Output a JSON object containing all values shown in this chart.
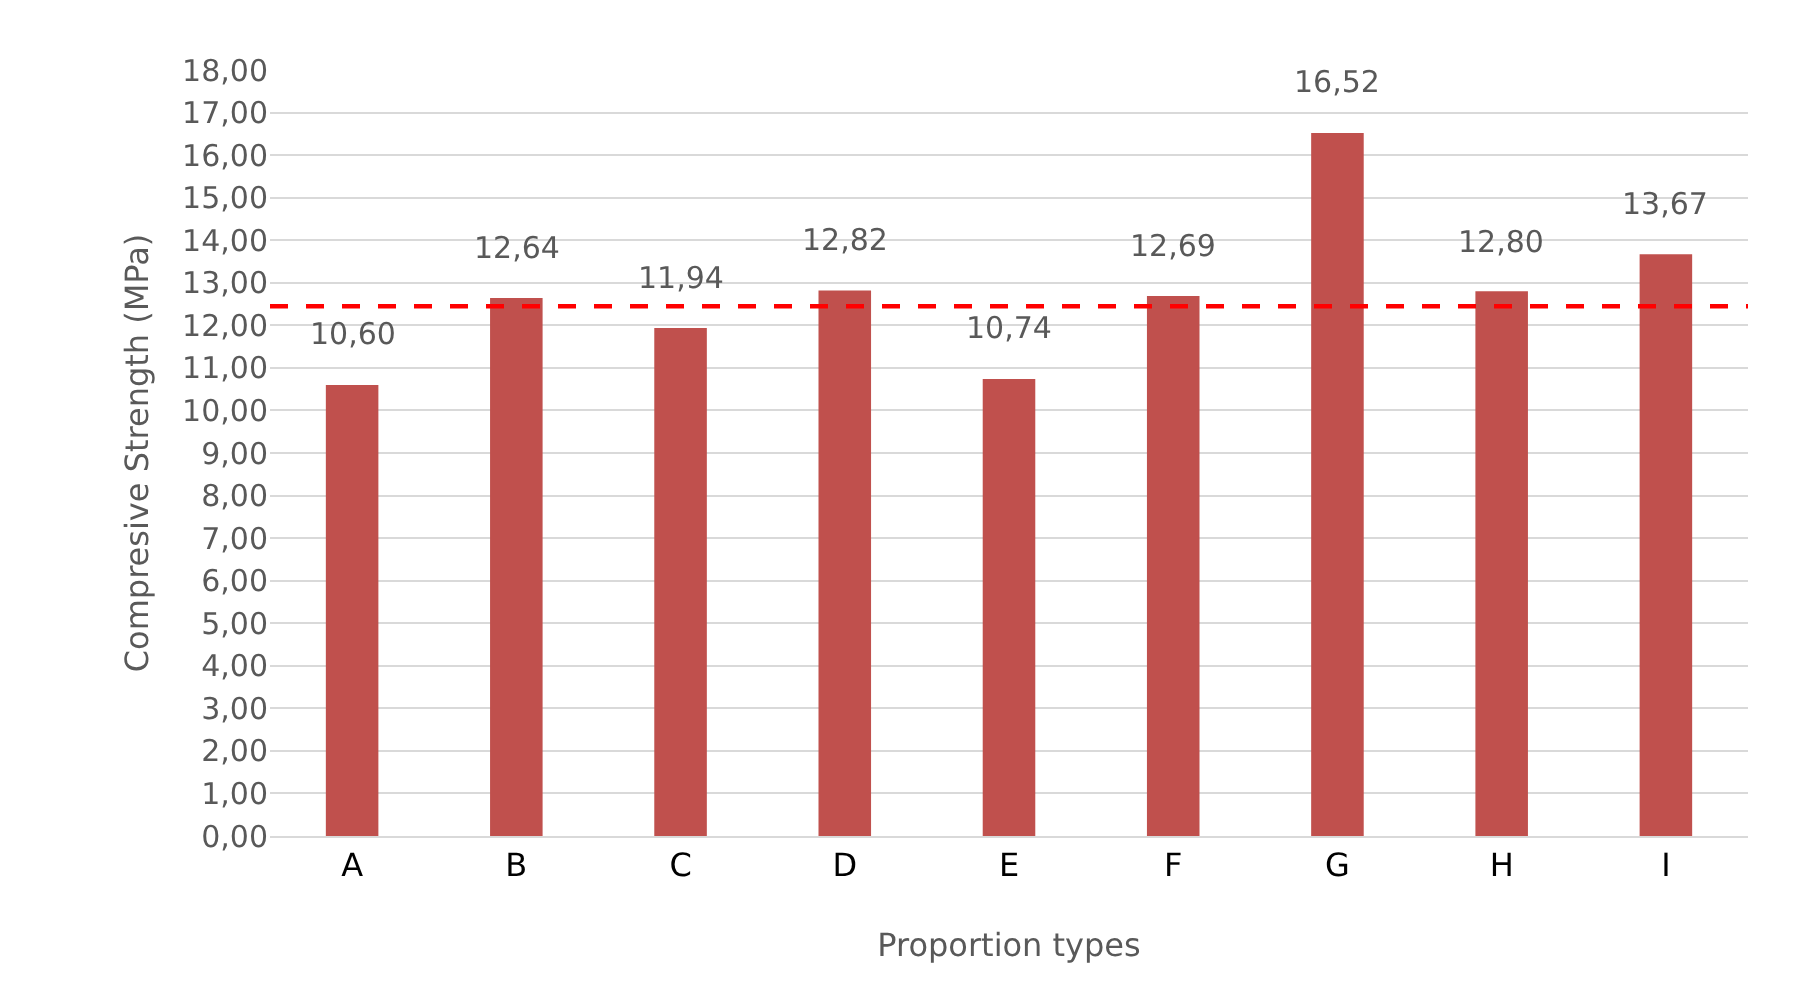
{
  "chart_data": {
    "type": "bar",
    "xlabel": "Proportion types",
    "ylabel": "Compresive Strength (MPa)",
    "categories": [
      "A",
      "B",
      "C",
      "D",
      "E",
      "F",
      "G",
      "H",
      "I"
    ],
    "values": [
      10.6,
      12.64,
      11.94,
      12.82,
      10.74,
      12.69,
      16.52,
      12.8,
      13.67
    ],
    "value_labels": [
      "10,60",
      "12,64",
      "11,94",
      "12,82",
      "10,74",
      "12,69",
      "16,52",
      "12,80",
      "13,67"
    ],
    "color": "#c0504d",
    "ylim": [
      0,
      18
    ],
    "yticks": [
      {
        "value": 0,
        "label": "0,00"
      },
      {
        "value": 1,
        "label": "1,00"
      },
      {
        "value": 2,
        "label": "2,00"
      },
      {
        "value": 3,
        "label": "3,00"
      },
      {
        "value": 4,
        "label": "4,00"
      },
      {
        "value": 5,
        "label": "5,00"
      },
      {
        "value": 6,
        "label": "6,00"
      },
      {
        "value": 7,
        "label": "7,00"
      },
      {
        "value": 8,
        "label": "8,00"
      },
      {
        "value": 9,
        "label": "9,00"
      },
      {
        "value": 10,
        "label": "10,00"
      },
      {
        "value": 11,
        "label": "11,00"
      },
      {
        "value": 12,
        "label": "12,00"
      },
      {
        "value": 13,
        "label": "13,00"
      },
      {
        "value": 14,
        "label": "14,00"
      },
      {
        "value": 15,
        "label": "15,00"
      },
      {
        "value": 16,
        "label": "16,00"
      },
      {
        "value": 17,
        "label": "17,00"
      },
      {
        "value": 18,
        "label": "18,00"
      }
    ],
    "ref_lines": [
      {
        "axis": "y",
        "value": 12.45,
        "color": "#ff0000",
        "line_style": "dashed"
      }
    ],
    "grid": "y"
  }
}
